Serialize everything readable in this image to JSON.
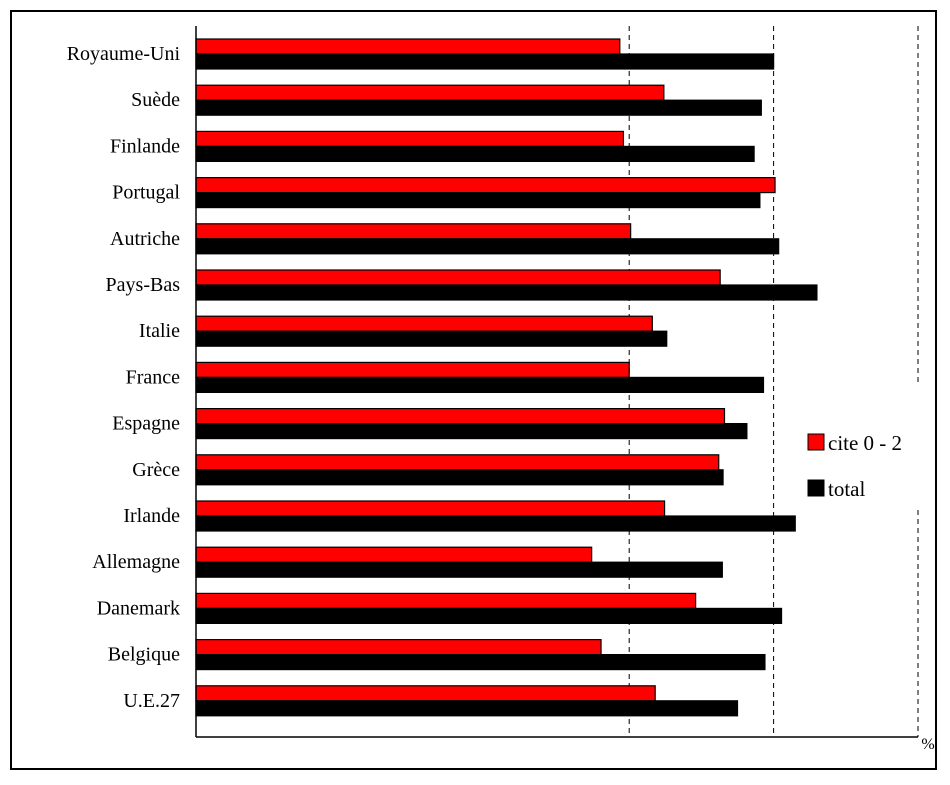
{
  "chart_data": {
    "type": "bar",
    "orientation": "horizontal",
    "categories": [
      "Royaume-Uni",
      "Suède",
      "Finlande",
      "Portugal",
      "Autriche",
      "Pays-Bas",
      "Italie",
      "France",
      "Espagne",
      "Grèce",
      "Irlande",
      "Allemagne",
      "Danemark",
      "Belgique",
      "U.E.27"
    ],
    "series": [
      {
        "name": "cite 0 - 2",
        "color": "#ff0000",
        "values": [
          58.7,
          64.8,
          59.2,
          80.2,
          60.2,
          72.6,
          63.2,
          60.0,
          73.2,
          72.4,
          64.9,
          54.8,
          69.2,
          56.1,
          63.6
        ]
      },
      {
        "name": "total",
        "color": "#000000",
        "values": [
          80.0,
          78.3,
          77.3,
          78.1,
          80.7,
          86.0,
          65.2,
          78.6,
          76.3,
          73.0,
          83.0,
          72.9,
          81.1,
          78.8,
          75.0
        ]
      }
    ],
    "xlim": [
      0,
      100
    ],
    "xticks": [
      "0",
      "20",
      "40",
      "60",
      "80",
      "100"
    ],
    "unit_label": "%",
    "xlabel": "",
    "ylabel": "",
    "title": "",
    "grid": "dashed vertical at 60, 80, 100",
    "legend_placement": "right-middle"
  }
}
